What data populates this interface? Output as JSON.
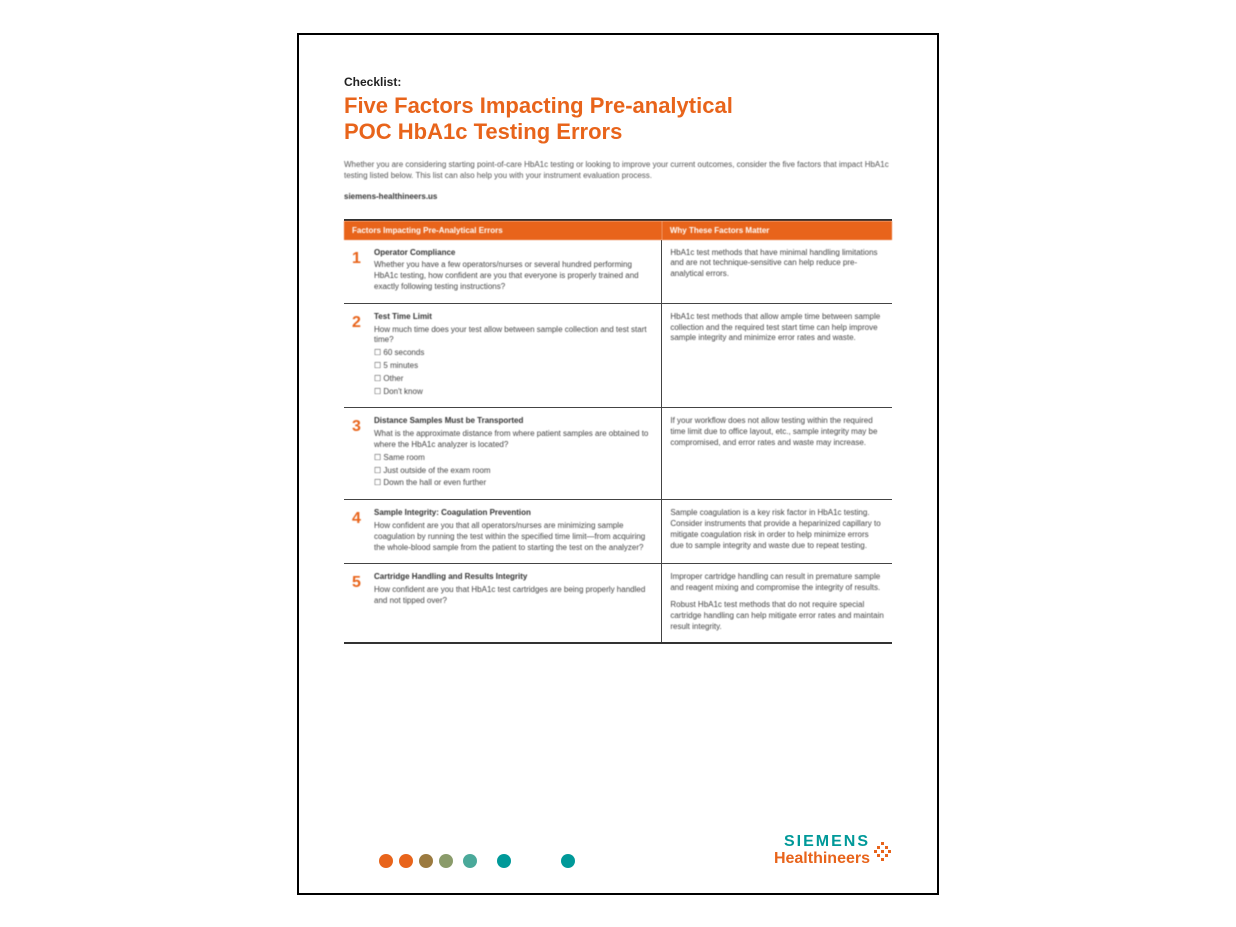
{
  "kicker": "Checklist:",
  "title_line1": "Five Factors Impacting Pre-analytical",
  "title_line2": "POC HbA1c Testing Errors",
  "intro": "Whether you are considering starting point-of-care HbA1c testing or looking to improve your current outcomes, consider the five factors that impact HbA1c testing listed below. This list can also help you with your instrument evaluation process.",
  "link": "siemens-healthineers.us",
  "table": {
    "header_left": "Factors Impacting Pre-Analytical Errors",
    "header_right": "Why These Factors Matter",
    "rows": [
      {
        "num": "1",
        "title": "Operator Compliance",
        "body": "Whether you have a few operators/nurses or several hundred performing HbA1c testing, how confident are you that everyone is properly trained and exactly following testing instructions?",
        "options": [],
        "why": "HbA1c test methods that have minimal handling limitations and are not technique-sensitive can help reduce pre-analytical errors."
      },
      {
        "num": "2",
        "title": "Test Time Limit",
        "body": "How much time does your test allow between sample collection and test start time?",
        "options": [
          "60 seconds",
          "5 minutes",
          "Other",
          "Don't know"
        ],
        "why": "HbA1c test methods that allow ample time between sample collection and the required test start time can help improve sample integrity and minimize error rates and waste."
      },
      {
        "num": "3",
        "title": "Distance Samples Must be Transported",
        "body": "What is the approximate distance from where patient samples are obtained to where the HbA1c analyzer is located?",
        "options": [
          "Same room",
          "Just outside of the exam room",
          "Down the hall or even further"
        ],
        "why": "If your workflow does not allow testing within the required time limit due to office layout, etc., sample integrity may be compromised, and error rates and waste may increase."
      },
      {
        "num": "4",
        "title": "Sample Integrity: Coagulation Prevention",
        "body": "How confident are you that all operators/nurses are minimizing sample coagulation by running the test within the specified time limit—from acquiring the whole-blood sample from the patient to starting the test on the analyzer?",
        "options": [],
        "why": "Sample coagulation is a key risk factor in HbA1c testing. Consider instruments that provide a heparinized capillary to mitigate coagulation risk in order to help minimize errors due to sample integrity and waste due to repeat testing."
      },
      {
        "num": "5",
        "title": "Cartridge Handling and Results Integrity",
        "body": "How confident are you that HbA1c test cartridges are being properly handled and not tipped over?",
        "options": [],
        "why": "Improper cartridge handling can result in premature sample and reagent mixing and compromise the integrity of results.\nRobust HbA1c test methods that do not require special cartridge handling can help mitigate error rates and maintain result integrity."
      }
    ]
  },
  "footer_dots": {
    "colors": [
      "#e8641b",
      "#e8641b",
      "#9b7a3f",
      "#8a9b6a",
      "#4aa99a",
      "#009999",
      "#009999"
    ],
    "gaps_after": [
      0,
      0,
      0,
      4,
      14,
      44,
      0
    ]
  },
  "logo": {
    "line1": "SIEMENS",
    "line2": "Healthineers"
  },
  "colors": {
    "brand_orange": "#e8641b",
    "brand_teal": "#009999"
  }
}
